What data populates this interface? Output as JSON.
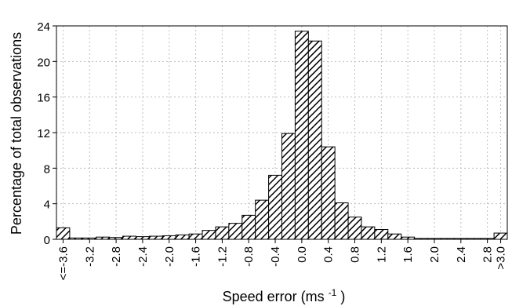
{
  "chart_data": {
    "type": "bar",
    "title": "",
    "xlabel": "Speed error (ms",
    "xlabel_sup": "-1",
    "xlabel_close": ")",
    "ylabel": "Percentage of total observations",
    "ylim": [
      0,
      24
    ],
    "yticks": [
      0,
      4,
      8,
      12,
      16,
      20,
      24
    ],
    "grid": true,
    "legend": "none",
    "bar_pattern": "diagonal-hatch",
    "bar_color": "#000000",
    "bin_width": 0.2,
    "categories": [
      "<=-3.6",
      "-3.4",
      "-3.2",
      "-3.0",
      "-2.8",
      "-2.6",
      "-2.4",
      "-2.2",
      "-2.0",
      "-1.8",
      "-1.6",
      "-1.4",
      "-1.2",
      "-1.0",
      "-0.8",
      "-0.6",
      "-0.4",
      "-0.2",
      "0.0",
      "0.2",
      "0.4",
      "0.6",
      "0.8",
      "1.0",
      "1.2",
      "1.4",
      "1.6",
      "1.8",
      "2.0",
      "2.2",
      "2.4",
      "2.6",
      "2.8",
      ">3.0"
    ],
    "values": [
      1.3,
      0.15,
      0.15,
      0.25,
      0.2,
      0.35,
      0.3,
      0.35,
      0.4,
      0.5,
      0.6,
      1.0,
      1.4,
      1.8,
      2.7,
      4.4,
      7.2,
      11.9,
      23.4,
      22.3,
      10.4,
      4.1,
      2.5,
      1.4,
      1.1,
      0.6,
      0.25,
      0.1,
      0.1,
      0.1,
      0.1,
      0.1,
      0.1,
      0.7
    ],
    "xtick_labels": [
      "<=-3.6",
      "-3.2",
      "-2.8",
      "-2.4",
      "-2.0",
      "-1.6",
      "-1.2",
      "-0.8",
      "-0.4",
      "0.0",
      "0.4",
      "0.8",
      "1.2",
      "1.6",
      "2.0",
      "2.4",
      "2.8",
      ">3.0"
    ],
    "xtick_bin_indices": [
      0,
      2,
      4,
      6,
      8,
      10,
      12,
      14,
      16,
      18,
      20,
      22,
      24,
      26,
      28,
      30,
      32,
      33
    ]
  }
}
